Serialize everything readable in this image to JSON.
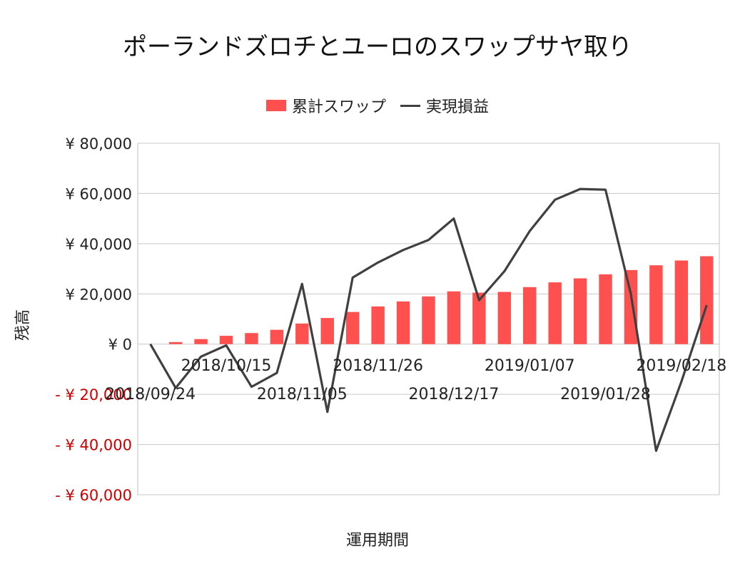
{
  "chart_data": {
    "type": "bar+line",
    "title": "ポーランドズロチとユーロのスワップサヤ取り",
    "xlabel": "運用期間",
    "ylabel": "残高",
    "ylim": [
      -60000,
      80000
    ],
    "yticks": [
      80000,
      60000,
      40000,
      20000,
      0,
      -20000,
      -40000,
      -60000
    ],
    "ytick_labels": [
      "¥ 80,000",
      "¥ 60,000",
      "¥ 40,000",
      "¥ 20,000",
      "¥ 0",
      "- ¥ 20,000",
      "- ¥ 40,000",
      "- ¥ 60,000"
    ],
    "xtick_labels_row1": [
      "2018/10/15",
      "2018/11/26",
      "2019/01/07",
      "2019/02/18"
    ],
    "xtick_labels_row2": [
      "2018/09/24",
      "2018/11/05",
      "2018/12/17",
      "2019/01/28"
    ],
    "legend_position": "top",
    "series": [
      {
        "name": "累計スワップ",
        "kind": "bar",
        "color": "#ff5050",
        "values": [
          0,
          800,
          2000,
          3300,
          4400,
          5700,
          8200,
          10400,
          12800,
          15000,
          17000,
          19000,
          21000,
          20500,
          20800,
          22700,
          24600,
          26200,
          27800,
          29500,
          31400,
          33300,
          35000
        ]
      },
      {
        "name": "実現損益",
        "kind": "line",
        "color": "#404040",
        "values": [
          0,
          -17500,
          -5000,
          -500,
          -17000,
          -11500,
          24000,
          -27000,
          26500,
          32500,
          37500,
          41500,
          50000,
          17500,
          29000,
          45000,
          57500,
          61800,
          61500,
          20000,
          -42500,
          -15000,
          15500
        ]
      }
    ],
    "negative_label_color": "#cc0000",
    "gridlines": true
  }
}
